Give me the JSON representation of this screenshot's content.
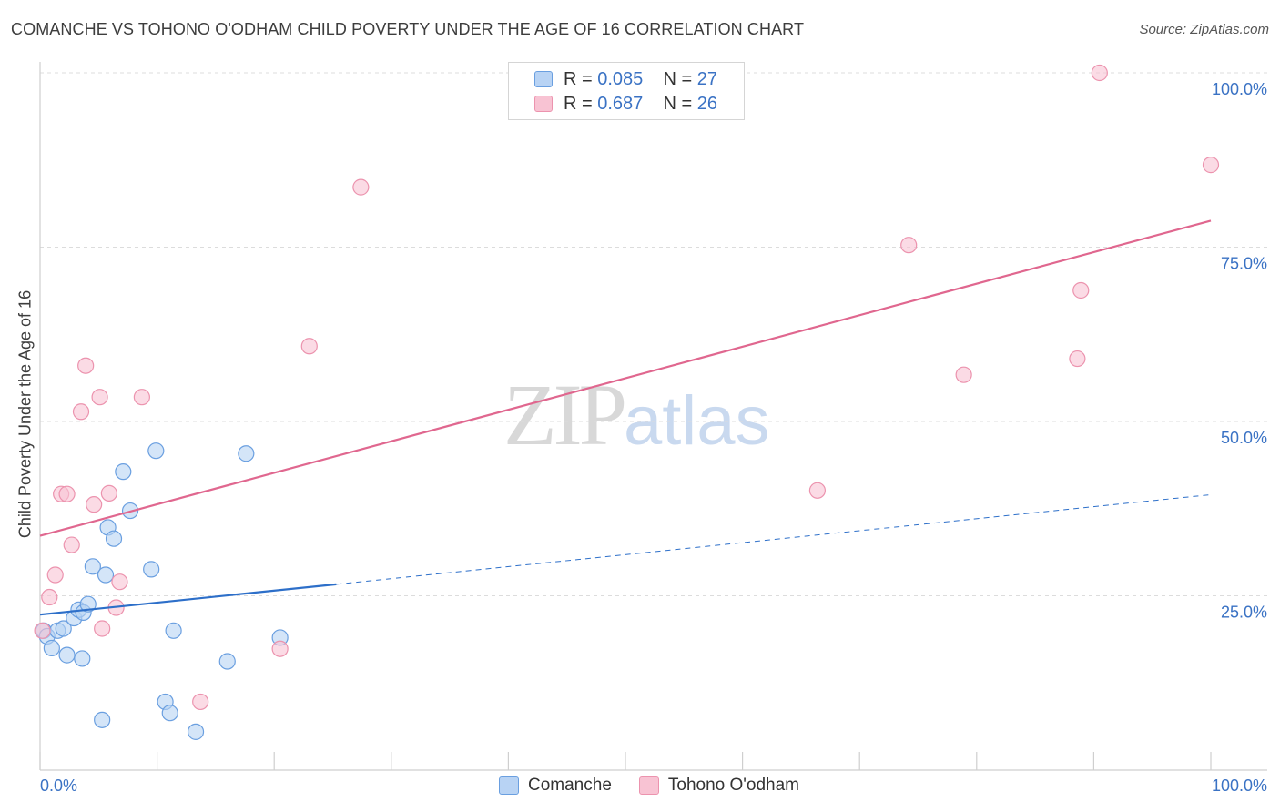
{
  "header": {
    "title": "COMANCHE VS TOHONO O'ODHAM CHILD POVERTY UNDER THE AGE OF 16 CORRELATION CHART",
    "source": "Source: ZipAtlas.com"
  },
  "watermark": {
    "zip": "ZIP",
    "atlas": "atlas"
  },
  "legend": {
    "rows": [
      {
        "r_label": "R =",
        "r_value": "0.085",
        "n_label": "N =",
        "n_value": "27"
      },
      {
        "r_label": "R =",
        "r_value": "0.687",
        "n_label": "N =",
        "n_value": "26"
      }
    ]
  },
  "bottom_legend": {
    "series1": "Comanche",
    "series2": "Tohono O'odham"
  },
  "colors": {
    "comanche_fill": "#b8d3f4",
    "comanche_stroke": "#6a9fe0",
    "comanche_line": "#2d6fc9",
    "tohono_fill": "#f8c3d3",
    "tohono_stroke": "#ec93ae",
    "tohono_line": "#e0678f",
    "grid": "#dcdcdc",
    "axis_text": "#3a72c4"
  },
  "chart_data": {
    "type": "scatter",
    "title": "COMANCHE VS TOHONO O'ODHAM CHILD POVERTY UNDER THE AGE OF 16 CORRELATION CHART",
    "xlabel": "",
    "ylabel": "Child Poverty Under the Age of 16",
    "xlim": [
      0,
      100
    ],
    "ylim": [
      0,
      100
    ],
    "x_tick_labels": [
      "0.0%",
      "100.0%"
    ],
    "y_tick_labels": [
      "25.0%",
      "50.0%",
      "75.0%",
      "100.0%"
    ],
    "y_ticks": [
      25,
      50,
      75,
      100
    ],
    "series": [
      {
        "name": "Comanche",
        "r": 0.085,
        "n": 27,
        "points": [
          [
            0.3,
            20.0
          ],
          [
            0.6,
            19.2
          ],
          [
            1.0,
            17.5
          ],
          [
            1.5,
            20.0
          ],
          [
            2.0,
            20.3
          ],
          [
            2.3,
            16.5
          ],
          [
            2.9,
            21.8
          ],
          [
            3.3,
            23.0
          ],
          [
            3.7,
            22.6
          ],
          [
            4.1,
            23.8
          ],
          [
            4.5,
            29.2
          ],
          [
            3.6,
            16.0
          ],
          [
            5.3,
            7.2
          ],
          [
            5.6,
            28.0
          ],
          [
            5.8,
            34.8
          ],
          [
            6.3,
            33.2
          ],
          [
            7.1,
            42.8
          ],
          [
            7.7,
            37.2
          ],
          [
            9.5,
            28.8
          ],
          [
            9.9,
            45.8
          ],
          [
            10.7,
            9.8
          ],
          [
            11.1,
            8.2
          ],
          [
            11.4,
            20.0
          ],
          [
            13.3,
            5.5
          ],
          [
            16.0,
            15.6
          ],
          [
            17.6,
            45.4
          ],
          [
            20.5,
            19.0
          ]
        ]
      },
      {
        "name": "Tohono O'odham",
        "r": 0.687,
        "n": 26,
        "points": [
          [
            0.2,
            20.0
          ],
          [
            0.8,
            24.8
          ],
          [
            1.3,
            28.0
          ],
          [
            1.8,
            39.6
          ],
          [
            2.3,
            39.6
          ],
          [
            2.7,
            32.3
          ],
          [
            3.5,
            51.4
          ],
          [
            3.9,
            58.0
          ],
          [
            4.6,
            38.1
          ],
          [
            5.1,
            53.5
          ],
          [
            5.3,
            20.3
          ],
          [
            5.9,
            39.7
          ],
          [
            6.5,
            23.3
          ],
          [
            6.8,
            27.0
          ],
          [
            8.7,
            53.5
          ],
          [
            13.7,
            9.8
          ],
          [
            20.5,
            17.4
          ],
          [
            23.0,
            60.8
          ],
          [
            27.4,
            83.6
          ],
          [
            66.4,
            40.1
          ],
          [
            74.2,
            75.3
          ],
          [
            78.9,
            56.7
          ],
          [
            88.6,
            59.0
          ],
          [
            88.9,
            68.8
          ],
          [
            90.5,
            100.0
          ],
          [
            100.0,
            86.8
          ]
        ]
      }
    ],
    "trend_lines": [
      {
        "series": "Comanche",
        "solid_x": [
          0,
          25.3
        ],
        "dashed_x": [
          25.3,
          100
        ],
        "intercept": 22.3,
        "slope": 0.172
      },
      {
        "series": "Tohono O'odham",
        "solid_x": [
          0,
          100
        ],
        "intercept": 33.6,
        "slope": 0.452
      }
    ]
  }
}
